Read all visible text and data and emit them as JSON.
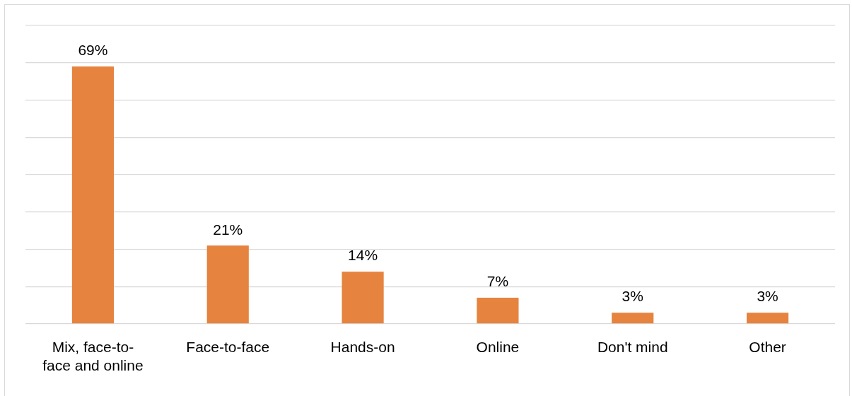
{
  "chart_data": {
    "type": "bar",
    "categories": [
      "Mix, face-to-face and online",
      "Face-to-face",
      "Hands-on",
      "Online",
      "Don't mind",
      "Other"
    ],
    "values": [
      69,
      21,
      14,
      7,
      3,
      3
    ],
    "value_labels": [
      "69%",
      "21%",
      "14%",
      "7%",
      "3%",
      "3%"
    ],
    "color": "#e5833f",
    "ylim": [
      0,
      80
    ],
    "yticks": [
      {
        "value": 0,
        "label": null
      },
      {
        "value": 10,
        "label": null
      },
      {
        "value": 20,
        "label": null
      },
      {
        "value": 30,
        "label": null
      },
      {
        "value": 40,
        "label": null
      },
      {
        "value": 50,
        "label": null
      },
      {
        "value": 60,
        "label": null
      },
      {
        "value": 70,
        "label": null
      },
      {
        "value": 80,
        "label": null
      }
    ],
    "grid": "y",
    "tick_labels": "x",
    "legend": false
  }
}
